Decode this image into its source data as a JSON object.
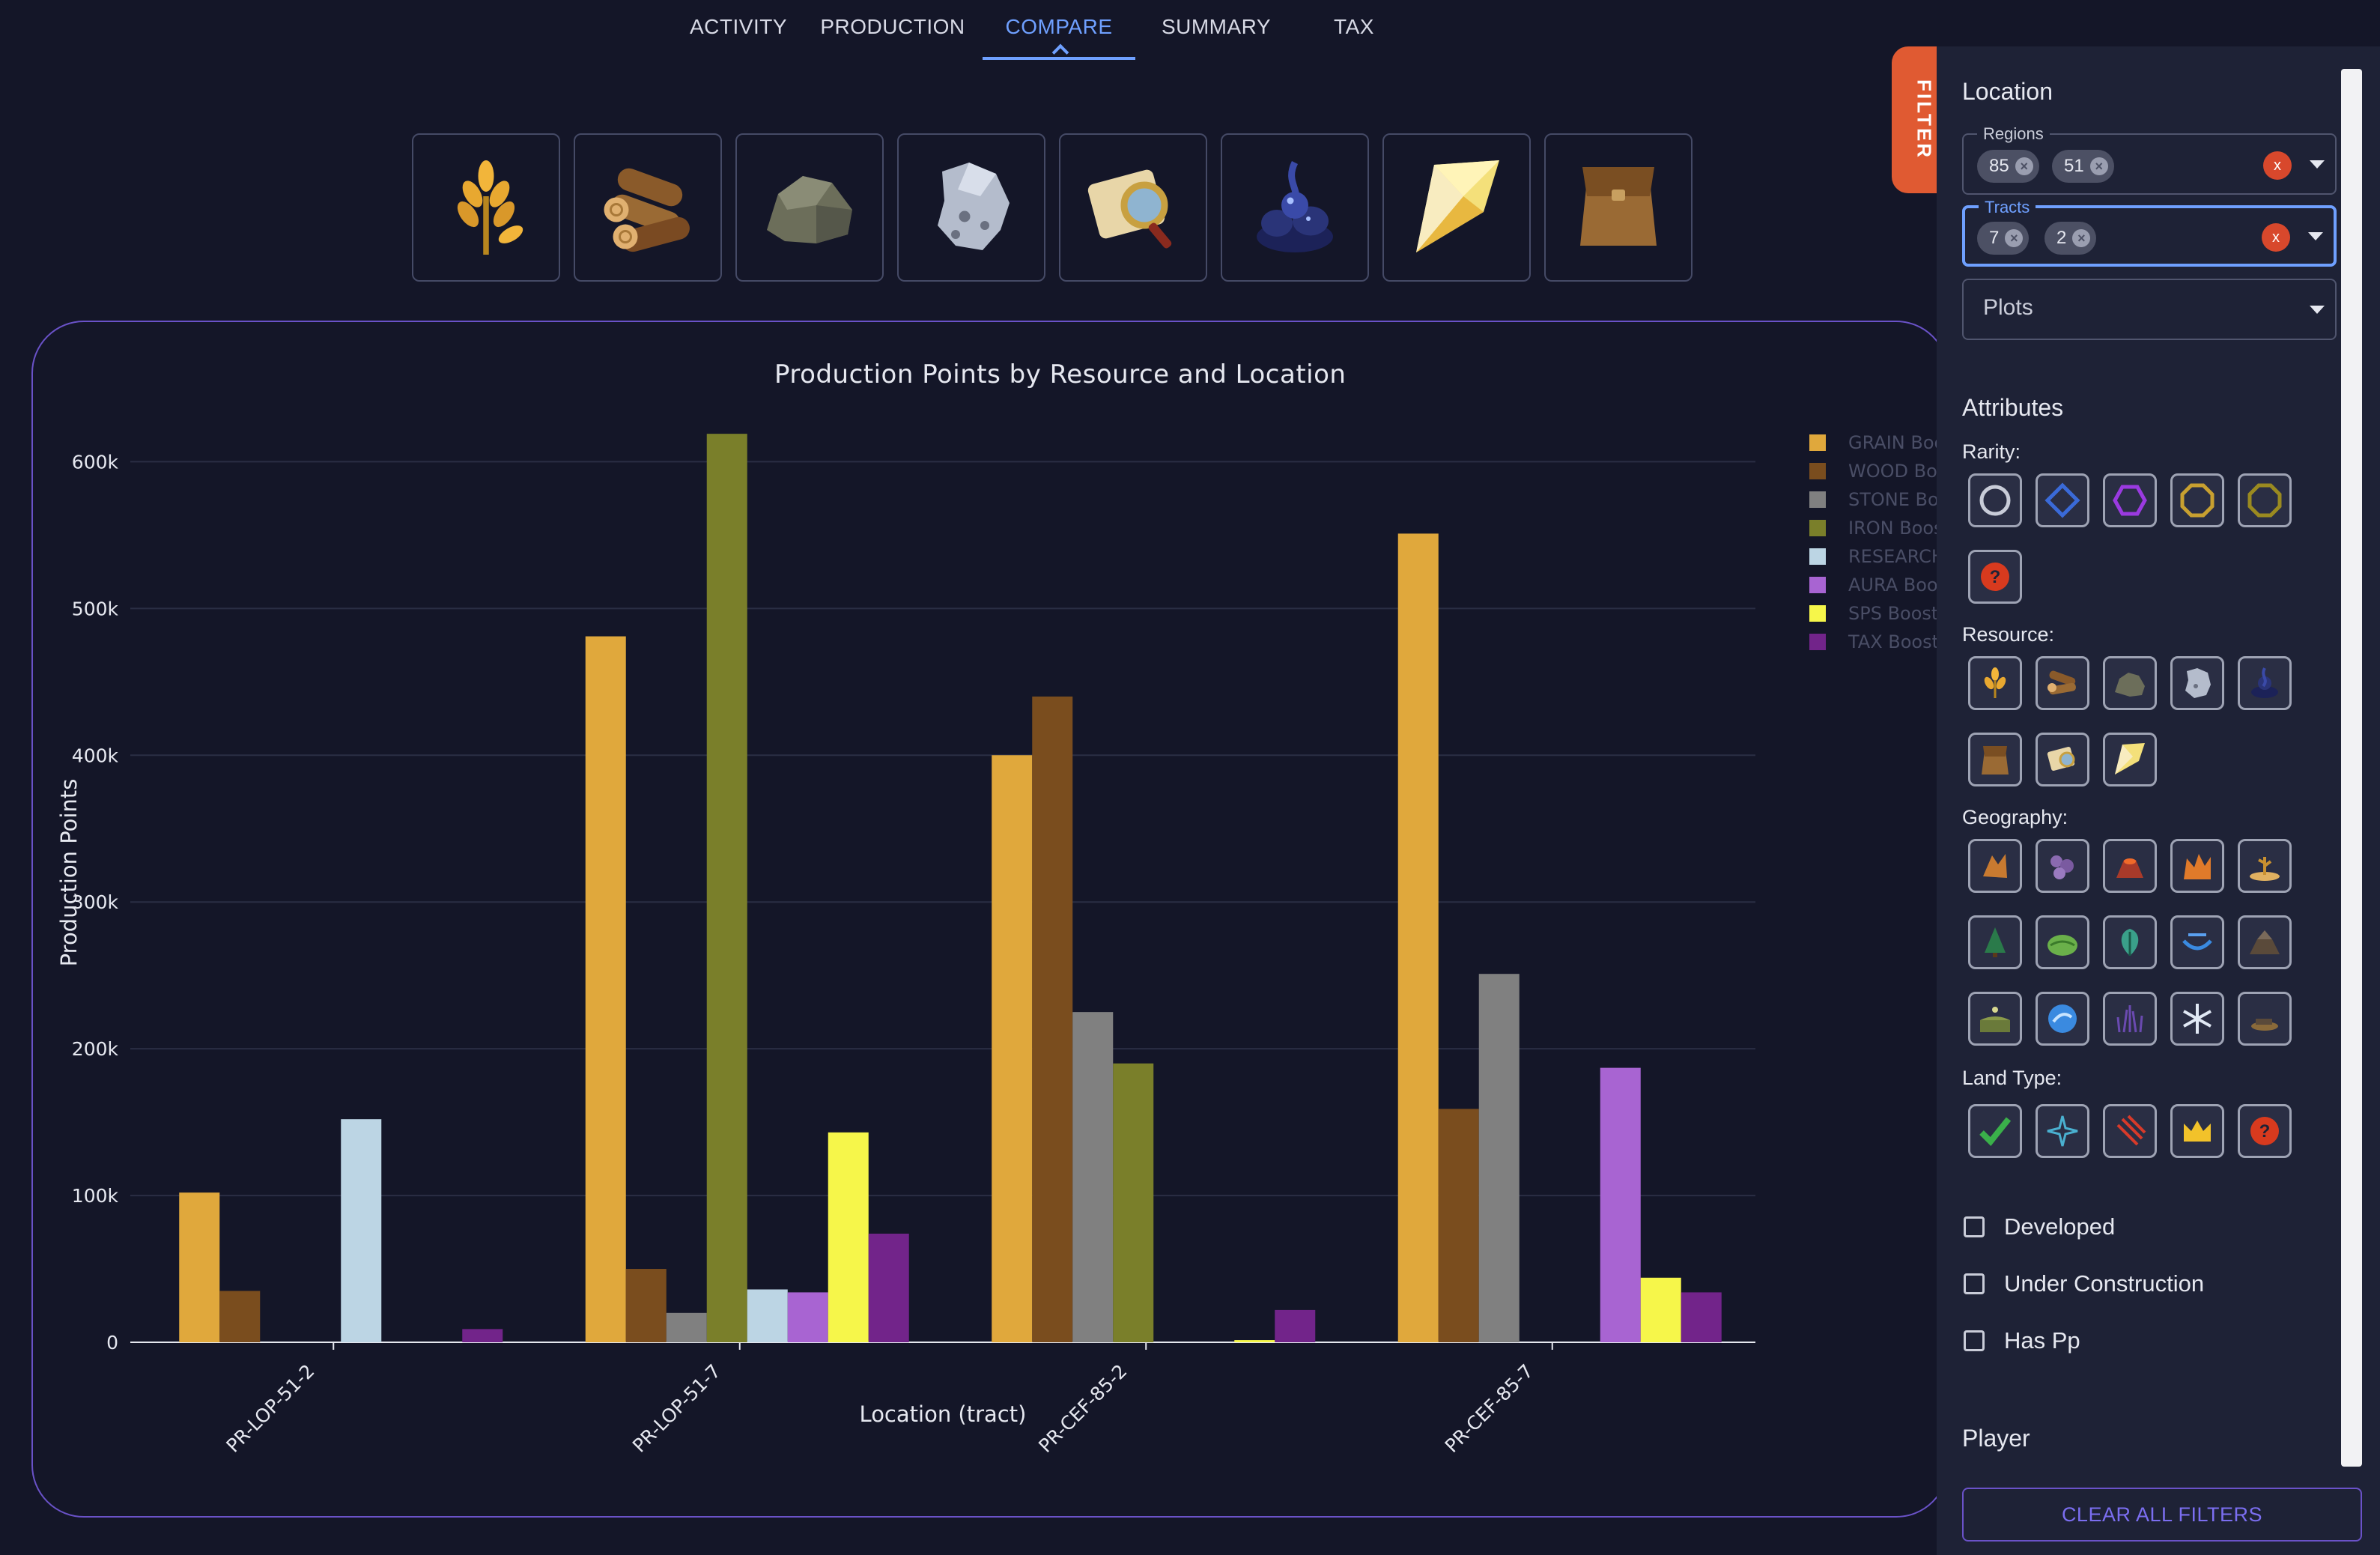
{
  "tabs": [
    {
      "label": "ACTIVITY"
    },
    {
      "label": "PRODUCTION"
    },
    {
      "label": "COMPARE"
    },
    {
      "label": "SUMMARY"
    },
    {
      "label": "TAX"
    }
  ],
  "active_tab": "COMPARE",
  "resource_buttons": [
    "grain-icon",
    "wood-icon",
    "stone-icon",
    "iron-icon",
    "research-icon",
    "aura-icon",
    "sps-icon",
    "tax-icon"
  ],
  "filter_tab": {
    "label": "FILTER"
  },
  "sidebar": {
    "location_title": "Location",
    "regions": {
      "label": "Regions",
      "chips": [
        "85",
        "51"
      ],
      "clear": "x"
    },
    "tracts": {
      "label": "Tracts",
      "chips": [
        "7",
        "2"
      ],
      "clear": "x"
    },
    "plots": {
      "value": "Plots"
    },
    "attributes_title": "Attributes",
    "rarity_label": "Rarity:",
    "resource_label": "Resource:",
    "geography_label": "Geography:",
    "land_type_label": "Land Type:",
    "unknown_mark": "?",
    "checkboxes": [
      "Developed",
      "Under Construction",
      "Has Pp"
    ],
    "player_title": "Player",
    "clear_all": "CLEAR ALL FILTERS"
  },
  "colors": {
    "grain": "#e0a83c",
    "wood": "#7a4d1e",
    "stone": "#808080",
    "iron": "#7a7f2a",
    "research": "#bcd5e4",
    "aura": "#a864d2",
    "sps": "#f6f64a",
    "tax": "#72248a",
    "accent": "#6fa0ff",
    "panel_border": "#6a52c8",
    "filter_tab": "#e05a32"
  },
  "chart_data": {
    "type": "bar",
    "title": "Production Points by Resource and Location",
    "xlabel": "Location (tract)",
    "ylabel": "Production Points",
    "ylim": [
      0,
      640000
    ],
    "yticks": [
      0,
      100000,
      200000,
      300000,
      400000,
      500000,
      600000
    ],
    "ytick_labels": [
      "0",
      "100k",
      "200k",
      "300k",
      "400k",
      "500k",
      "600k"
    ],
    "categories": [
      "PR-LOP-51-2",
      "PR-LOP-51-7",
      "PR-CEF-85-2",
      "PR-CEF-85-7"
    ],
    "legend_position": "top-right",
    "series": [
      {
        "name": "GRAIN Boost",
        "color": "#e0a83c",
        "values": [
          102000,
          481000,
          400000,
          551000
        ]
      },
      {
        "name": "WOOD Boost",
        "color": "#7a4d1e",
        "values": [
          35000,
          50000,
          440000,
          159000
        ]
      },
      {
        "name": "STONE Boost",
        "color": "#808080",
        "values": [
          0,
          20000,
          225000,
          251000
        ]
      },
      {
        "name": "IRON Boost",
        "color": "#7a7f2a",
        "values": [
          0,
          619000,
          190000,
          0
        ]
      },
      {
        "name": "RESEARCH Boost",
        "color": "#bcd5e4",
        "values": [
          152000,
          36000,
          0,
          0
        ]
      },
      {
        "name": "AURA Boost",
        "color": "#a864d2",
        "values": [
          0,
          34000,
          0,
          187000
        ]
      },
      {
        "name": "SPS Boost",
        "color": "#f6f64a",
        "values": [
          0,
          143000,
          1500,
          44000
        ]
      },
      {
        "name": "TAX Boost",
        "color": "#72248a",
        "values": [
          9000,
          74000,
          22000,
          34000
        ]
      }
    ]
  }
}
